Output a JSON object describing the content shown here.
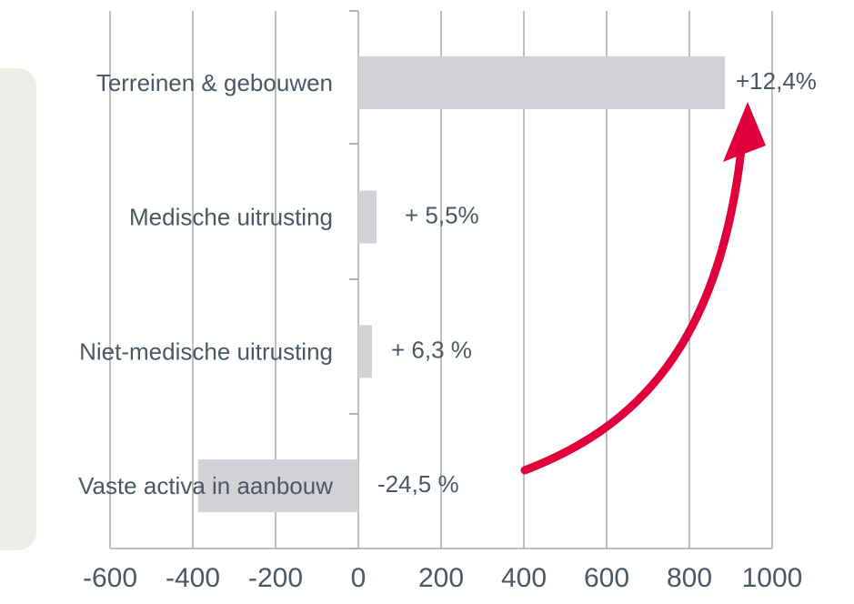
{
  "chart_data": {
    "type": "bar",
    "orientation": "horizontal",
    "categories": [
      "Terreinen & gebouwen",
      "Medische uitrusting",
      "Niet-medische uitrusting",
      "Vaste activa in aanbouw"
    ],
    "values": [
      886,
      44,
      33,
      -387
    ],
    "color": "#d3d1d6",
    "annotations": [
      "+12,4%",
      "+ 5,5%",
      "+ 6,3 %",
      "-24,5 %"
    ],
    "xlim": [
      -600,
      1000
    ],
    "xticks": [
      -600,
      -400,
      -200,
      0,
      200,
      400,
      600,
      800,
      1000
    ],
    "grid": true
  }
}
